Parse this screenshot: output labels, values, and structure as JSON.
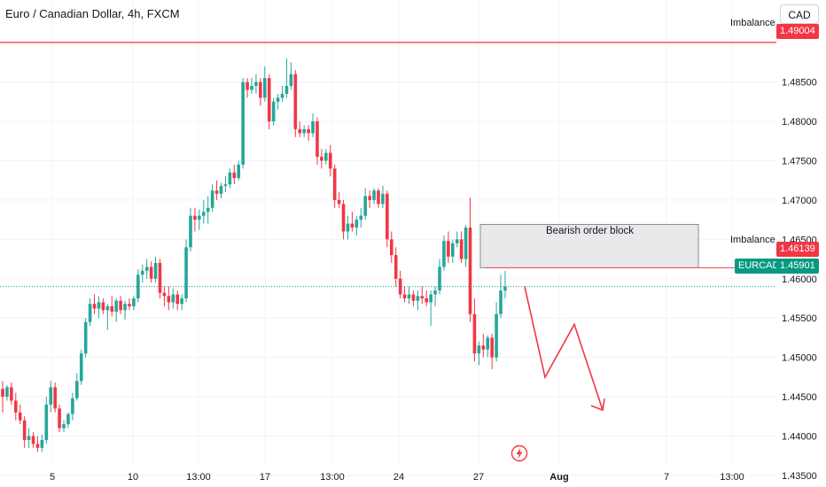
{
  "header": {
    "title": "Euro / Canadian Dollar, 4h, FXCM"
  },
  "currency_button": {
    "label": "CAD"
  },
  "annotations": {
    "imbalance_top": "Imbalance",
    "imbalance_mid": "Imbalance",
    "order_block": "Bearish order block"
  },
  "price_tags": {
    "imbalance_top": "1.49004",
    "imbalance_mid": "1.46139",
    "symbol": "EURCAD",
    "last": "1.45901"
  },
  "colors": {
    "up": "#26a69a",
    "down": "#f23645",
    "imbalance_line": "#f7525f",
    "arrow": "#f23645",
    "order_block_fill": "#e9e9eb",
    "order_block_border": "#8a8a8f"
  },
  "icons": {
    "flash": "lightning-icon"
  },
  "chart_data": {
    "type": "candlestick",
    "title": "Euro / Canadian Dollar, 4h, FXCM",
    "y_ticks": [
      "1.48500",
      "1.48000",
      "1.47500",
      "1.47000",
      "1.46500",
      "1.46000",
      "1.45500",
      "1.45000",
      "1.44500",
      "1.44000",
      "1.43500"
    ],
    "x_ticks": [
      "5",
      "10",
      "13:00",
      "17",
      "13:00",
      "24",
      "27",
      "Aug",
      "7",
      "13:00"
    ],
    "ylim": [
      1.4333,
      1.4925
    ],
    "imbalance_levels": [
      1.49004,
      1.46139
    ],
    "last_price": 1.45901,
    "order_block": {
      "low": 1.46139,
      "high": 1.4669
    },
    "projection_path": [
      1.45901,
      1.44748,
      1.4542,
      1.4433
    ],
    "candles": [
      [
        1.446,
        1.447,
        1.443,
        1.445
      ],
      [
        1.445,
        1.4465,
        1.4445,
        1.4462
      ],
      [
        1.4462,
        1.4468,
        1.444,
        1.4445
      ],
      [
        1.4445,
        1.4455,
        1.442,
        1.443
      ],
      [
        1.443,
        1.444,
        1.4415,
        1.442
      ],
      [
        1.442,
        1.4425,
        1.4385,
        1.4395
      ],
      [
        1.4395,
        1.441,
        1.4385,
        1.44
      ],
      [
        1.44,
        1.4405,
        1.4385,
        1.439
      ],
      [
        1.439,
        1.44,
        1.438,
        1.4385
      ],
      [
        1.4385,
        1.4402,
        1.438,
        1.4395
      ],
      [
        1.4395,
        1.445,
        1.439,
        1.444
      ],
      [
        1.444,
        1.447,
        1.443,
        1.4462
      ],
      [
        1.4462,
        1.4468,
        1.443,
        1.4435
      ],
      [
        1.4435,
        1.444,
        1.4405,
        1.441
      ],
      [
        1.441,
        1.442,
        1.4405,
        1.4415
      ],
      [
        1.4415,
        1.443,
        1.441,
        1.4428
      ],
      [
        1.4428,
        1.4455,
        1.442,
        1.4448
      ],
      [
        1.4448,
        1.448,
        1.4445,
        1.447
      ],
      [
        1.447,
        1.451,
        1.4465,
        1.4505
      ],
      [
        1.4505,
        1.455,
        1.45,
        1.4545
      ],
      [
        1.4545,
        1.4575,
        1.454,
        1.4568
      ],
      [
        1.4568,
        1.458,
        1.4555,
        1.4562
      ],
      [
        1.4562,
        1.4578,
        1.455,
        1.457
      ],
      [
        1.457,
        1.4575,
        1.4555,
        1.456
      ],
      [
        1.456,
        1.4568,
        1.4535,
        1.4565
      ],
      [
        1.4565,
        1.4578,
        1.4552,
        1.4558
      ],
      [
        1.4558,
        1.4575,
        1.4545,
        1.4572
      ],
      [
        1.4572,
        1.4578,
        1.4555,
        1.456
      ],
      [
        1.456,
        1.4572,
        1.4548,
        1.4568
      ],
      [
        1.4568,
        1.4575,
        1.456,
        1.4565
      ],
      [
        1.4565,
        1.4578,
        1.456,
        1.4575
      ],
      [
        1.4575,
        1.4612,
        1.457,
        1.4605
      ],
      [
        1.4605,
        1.4618,
        1.4595,
        1.461
      ],
      [
        1.461,
        1.4625,
        1.46,
        1.4615
      ],
      [
        1.4615,
        1.4622,
        1.4595,
        1.46
      ],
      [
        1.46,
        1.4628,
        1.4595,
        1.462
      ],
      [
        1.462,
        1.4625,
        1.4575,
        1.4582
      ],
      [
        1.4582,
        1.459,
        1.4565,
        1.4578
      ],
      [
        1.4578,
        1.459,
        1.456,
        1.457
      ],
      [
        1.457,
        1.4588,
        1.4562,
        1.458
      ],
      [
        1.458,
        1.4585,
        1.456,
        1.4568
      ],
      [
        1.4568,
        1.458,
        1.456,
        1.4575
      ],
      [
        1.4575,
        1.465,
        1.457,
        1.464
      ],
      [
        1.464,
        1.469,
        1.4635,
        1.468
      ],
      [
        1.468,
        1.469,
        1.466,
        1.4675
      ],
      [
        1.4675,
        1.4688,
        1.4662,
        1.468
      ],
      [
        1.468,
        1.47,
        1.467,
        1.4685
      ],
      [
        1.4685,
        1.4705,
        1.467,
        1.469
      ],
      [
        1.469,
        1.472,
        1.4685,
        1.4712
      ],
      [
        1.4712,
        1.4725,
        1.47,
        1.4708
      ],
      [
        1.4708,
        1.4722,
        1.4702,
        1.4718
      ],
      [
        1.4718,
        1.473,
        1.471,
        1.472
      ],
      [
        1.472,
        1.474,
        1.4715,
        1.4735
      ],
      [
        1.4735,
        1.4745,
        1.472,
        1.4728
      ],
      [
        1.4728,
        1.475,
        1.4725,
        1.4745
      ],
      [
        1.4745,
        1.4855,
        1.474,
        1.485
      ],
      [
        1.485,
        1.4855,
        1.483,
        1.484
      ],
      [
        1.484,
        1.4855,
        1.4835,
        1.4845
      ],
      [
        1.4845,
        1.486,
        1.4835,
        1.485
      ],
      [
        1.485,
        1.4855,
        1.482,
        1.483
      ],
      [
        1.483,
        1.487,
        1.4825,
        1.4855
      ],
      [
        1.4855,
        1.486,
        1.479,
        1.48
      ],
      [
        1.48,
        1.483,
        1.4795,
        1.4825
      ],
      [
        1.4825,
        1.4835,
        1.4815,
        1.483
      ],
      [
        1.483,
        1.4845,
        1.4825,
        1.4835
      ],
      [
        1.4835,
        1.488,
        1.483,
        1.4845
      ],
      [
        1.4845,
        1.4875,
        1.484,
        1.486
      ],
      [
        1.486,
        1.4865,
        1.478,
        1.479
      ],
      [
        1.479,
        1.48,
        1.478,
        1.4785
      ],
      [
        1.4785,
        1.4795,
        1.478,
        1.479
      ],
      [
        1.479,
        1.4795,
        1.4775,
        1.4785
      ],
      [
        1.4785,
        1.481,
        1.478,
        1.48
      ],
      [
        1.48,
        1.4805,
        1.4745,
        1.4755
      ],
      [
        1.4755,
        1.4765,
        1.474,
        1.475
      ],
      [
        1.475,
        1.4765,
        1.4745,
        1.476
      ],
      [
        1.476,
        1.477,
        1.473,
        1.474
      ],
      [
        1.474,
        1.4745,
        1.469,
        1.47
      ],
      [
        1.47,
        1.471,
        1.469,
        1.4695
      ],
      [
        1.4695,
        1.47,
        1.465,
        1.466
      ],
      [
        1.466,
        1.468,
        1.465,
        1.467
      ],
      [
        1.467,
        1.4685,
        1.466,
        1.4665
      ],
      [
        1.4665,
        1.468,
        1.4655,
        1.4675
      ],
      [
        1.4675,
        1.469,
        1.4665,
        1.468
      ],
      [
        1.468,
        1.4715,
        1.4675,
        1.4705
      ],
      [
        1.4705,
        1.4712,
        1.469,
        1.47
      ],
      [
        1.47,
        1.4715,
        1.4695,
        1.4712
      ],
      [
        1.4712,
        1.4715,
        1.469,
        1.4695
      ],
      [
        1.4695,
        1.4718,
        1.469,
        1.4708
      ],
      [
        1.4708,
        1.4712,
        1.464,
        1.465
      ],
      [
        1.465,
        1.466,
        1.462,
        1.463
      ],
      [
        1.463,
        1.464,
        1.459,
        1.46
      ],
      [
        1.46,
        1.461,
        1.4575,
        1.458
      ],
      [
        1.458,
        1.459,
        1.457,
        1.4575
      ],
      [
        1.4575,
        1.459,
        1.4568,
        1.458
      ],
      [
        1.458,
        1.4585,
        1.4565,
        1.4572
      ],
      [
        1.4572,
        1.4585,
        1.456,
        1.4578
      ],
      [
        1.4578,
        1.459,
        1.4568,
        1.4575
      ],
      [
        1.4575,
        1.4585,
        1.4565,
        1.457
      ],
      [
        1.457,
        1.4585,
        1.454,
        1.458
      ],
      [
        1.458,
        1.459,
        1.4565,
        1.4585
      ],
      [
        1.4585,
        1.4625,
        1.458,
        1.4615
      ],
      [
        1.4615,
        1.4655,
        1.461,
        1.4648
      ],
      [
        1.4648,
        1.466,
        1.462,
        1.4628
      ],
      [
        1.4628,
        1.465,
        1.462,
        1.4645
      ],
      [
        1.4645,
        1.466,
        1.464,
        1.465
      ],
      [
        1.465,
        1.466,
        1.462,
        1.4625
      ],
      [
        1.4625,
        1.4668,
        1.4615,
        1.4665
      ],
      [
        1.4665,
        1.4703,
        1.4545,
        1.4555
      ],
      [
        1.4555,
        1.4575,
        1.4495,
        1.4505
      ],
      [
        1.4505,
        1.452,
        1.449,
        1.4515
      ],
      [
        1.4515,
        1.453,
        1.45,
        1.451
      ],
      [
        1.451,
        1.4528,
        1.45,
        1.4525
      ],
      [
        1.4525,
        1.453,
        1.4485,
        1.45
      ],
      [
        1.45,
        1.457,
        1.4495,
        1.4555
      ],
      [
        1.4555,
        1.4605,
        1.455,
        1.4585
      ],
      [
        1.4585,
        1.461,
        1.4575,
        1.459
      ]
    ]
  }
}
